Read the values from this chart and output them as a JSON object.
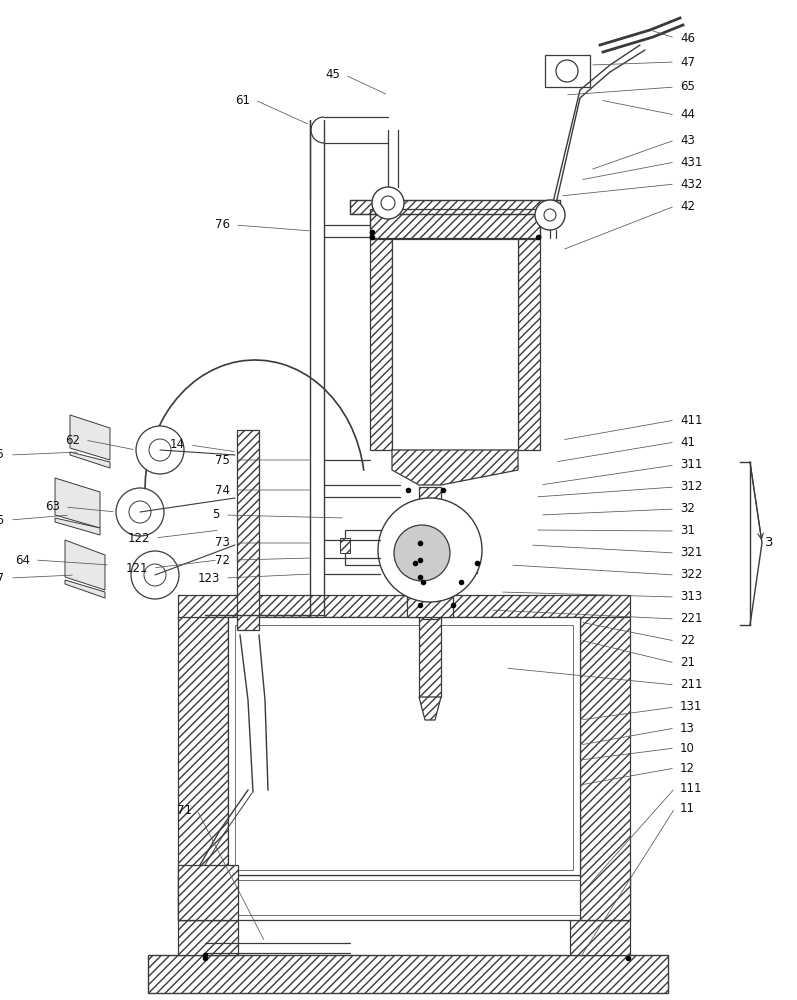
{
  "fig_width": 7.97,
  "fig_height": 10.0,
  "dpi": 100,
  "lc": "#4a4a4a",
  "lw": 0.8,
  "hatch": "////",
  "components": "isobaric_liquid_device"
}
